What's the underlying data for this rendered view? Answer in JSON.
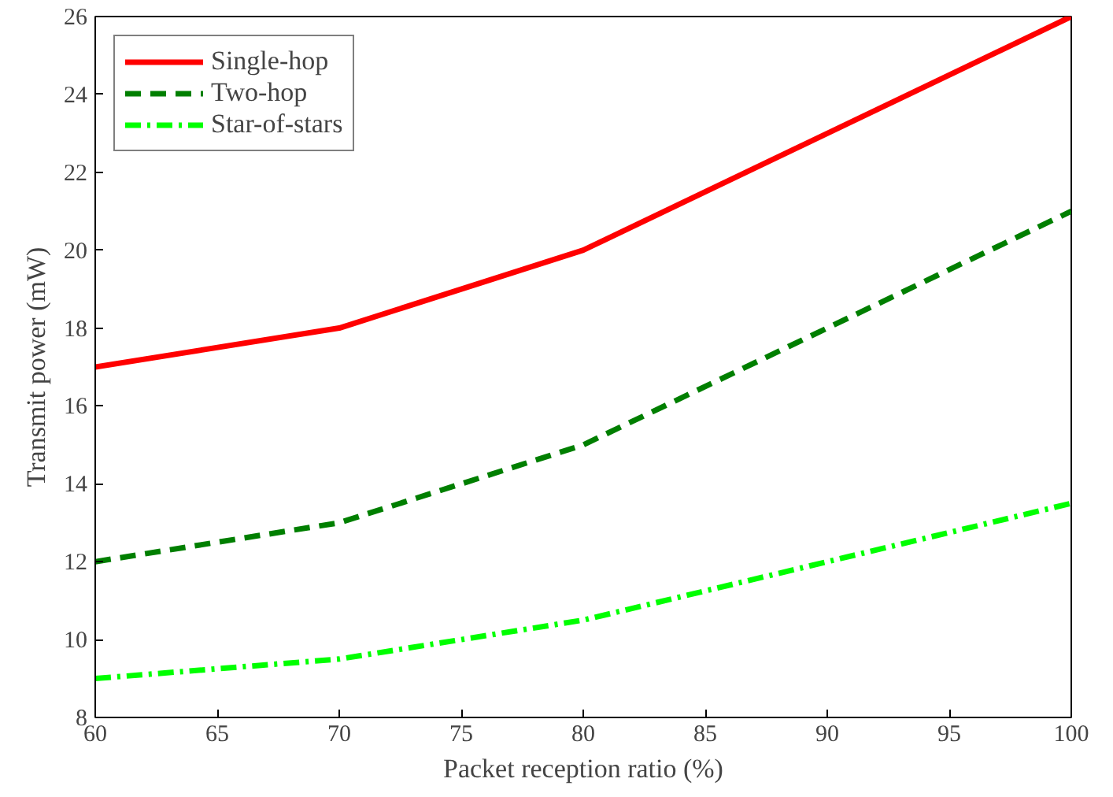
{
  "chart_data": {
    "type": "line",
    "xlabel": "Packet reception ratio (%)",
    "ylabel": "Transmit power (mW)",
    "x": [
      60,
      70,
      80,
      90,
      100
    ],
    "series": [
      {
        "name": "Single-hop",
        "color": "#ff0000",
        "values": [
          17,
          18,
          20,
          23,
          26
        ],
        "line_style": "solid"
      },
      {
        "name": "Two-hop",
        "color": "#007f00",
        "values": [
          12,
          13,
          15,
          18,
          21
        ],
        "line_style": "dashed"
      },
      {
        "name": "Star-of-stars",
        "color": "#00ff00",
        "values": [
          9,
          9.5,
          10.5,
          12,
          13.5
        ],
        "line_style": "dashdot"
      }
    ],
    "xlim": [
      60,
      100
    ],
    "xticks": [
      60,
      65,
      70,
      75,
      80,
      85,
      90,
      95,
      100
    ],
    "ylim": [
      8,
      26
    ],
    "yticks": [
      8,
      10,
      12,
      14,
      16,
      18,
      20,
      22,
      24,
      26
    ],
    "grid": false,
    "legend": "top left",
    "marker": "none"
  }
}
